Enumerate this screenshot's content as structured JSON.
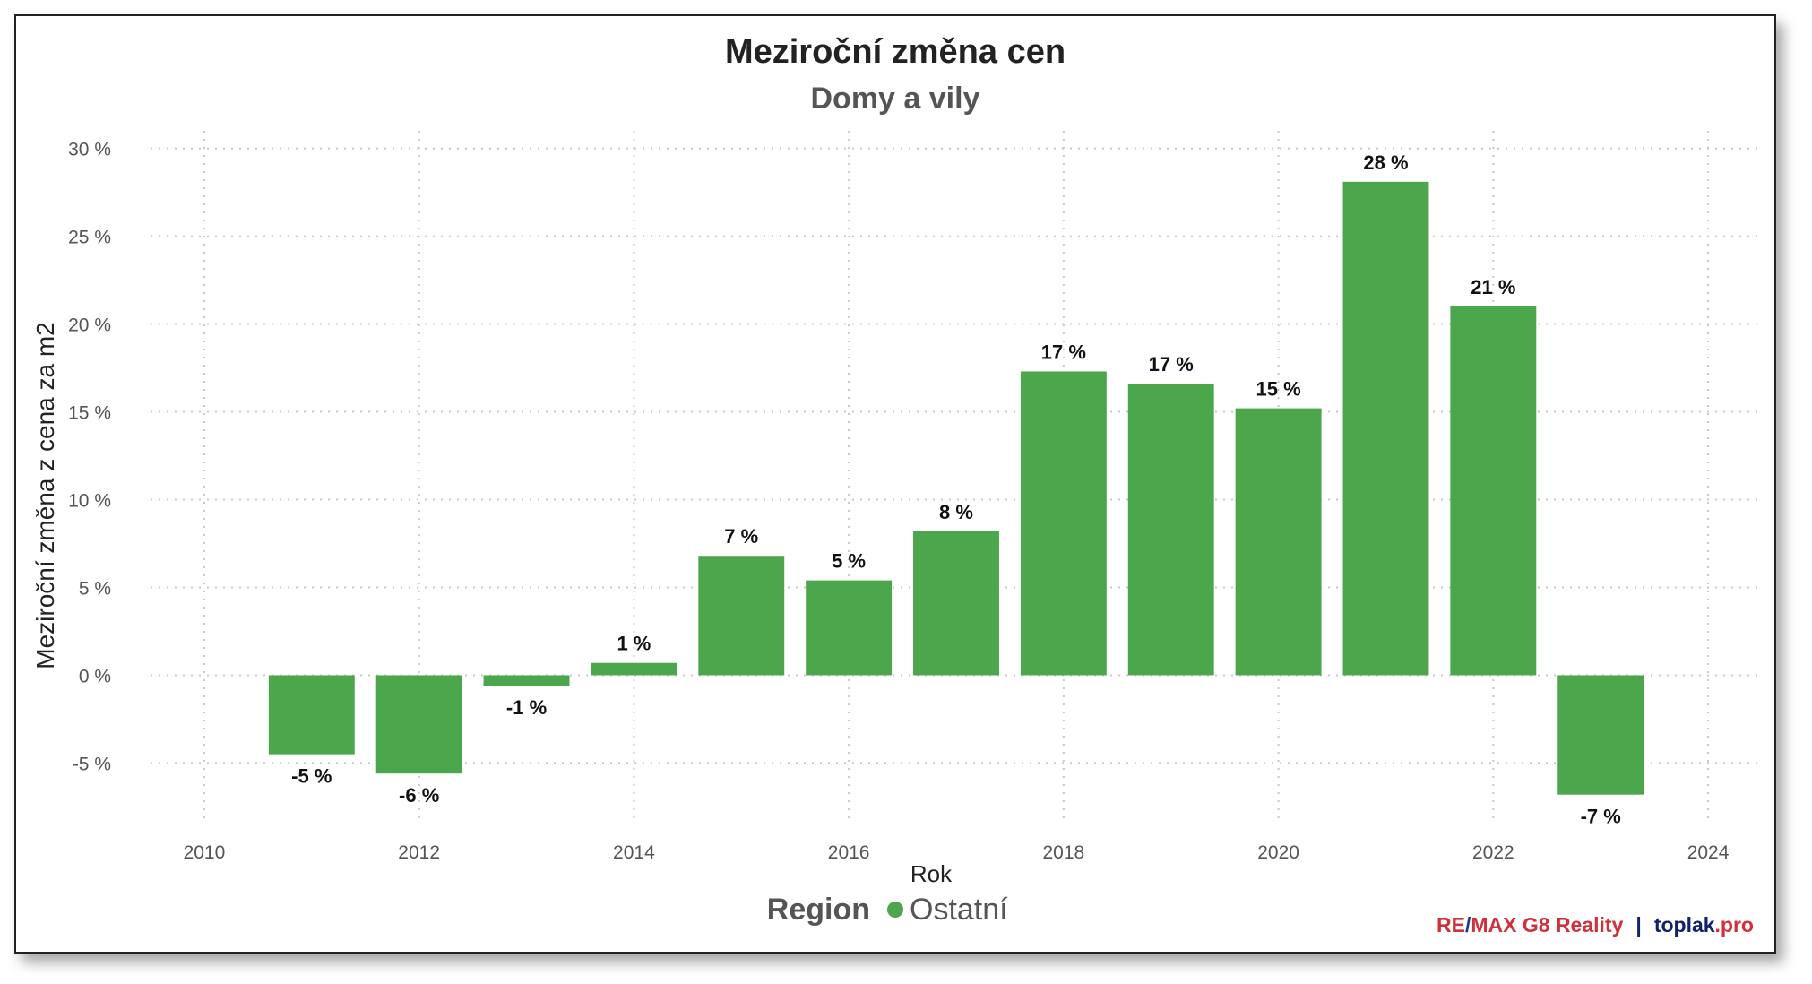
{
  "chart_data": {
    "type": "bar",
    "title": "Meziroční změna cen",
    "subtitle": "Domy a vily",
    "xlabel": "Rok",
    "ylabel": "Meziroční změna z cena za m2",
    "xlim": [
      2009.5,
      2024.5
    ],
    "ylim": [
      -8.5,
      31
    ],
    "x_ticks": [
      {
        "value": 2010,
        "label": "2010"
      },
      {
        "value": 2012,
        "label": "2012"
      },
      {
        "value": 2014,
        "label": "2014"
      },
      {
        "value": 2016,
        "label": "2016"
      },
      {
        "value": 2018,
        "label": "2018"
      },
      {
        "value": 2020,
        "label": "2020"
      },
      {
        "value": 2022,
        "label": "2022"
      },
      {
        "value": 2024,
        "label": "2024"
      }
    ],
    "y_ticks": [
      {
        "value": 30,
        "label": "30 %"
      },
      {
        "value": 25,
        "label": "25 %"
      },
      {
        "value": 20,
        "label": "20 %"
      },
      {
        "value": 15,
        "label": "15 %"
      },
      {
        "value": 10,
        "label": "10 %"
      },
      {
        "value": 5,
        "label": "5 %"
      },
      {
        "value": 0,
        "label": "0 %"
      },
      {
        "value": -5,
        "label": "-5 %"
      }
    ],
    "grid": true,
    "bar_color": "#4ca64c",
    "series": [
      {
        "name": "Ostatní",
        "points": [
          {
            "x": 2011,
            "y": -4.5,
            "label": "-5 %"
          },
          {
            "x": 2012,
            "y": -5.6,
            "label": "-6 %"
          },
          {
            "x": 2013,
            "y": -0.6,
            "label": "-1 %"
          },
          {
            "x": 2014,
            "y": 0.7,
            "label": "1 %"
          },
          {
            "x": 2015,
            "y": 6.8,
            "label": "7 %"
          },
          {
            "x": 2016,
            "y": 5.4,
            "label": "5 %"
          },
          {
            "x": 2017,
            "y": 8.2,
            "label": "8 %"
          },
          {
            "x": 2018,
            "y": 17.3,
            "label": "17 %"
          },
          {
            "x": 2019,
            "y": 16.6,
            "label": "17 %"
          },
          {
            "x": 2020,
            "y": 15.2,
            "label": "15 %"
          },
          {
            "x": 2021,
            "y": 28.1,
            "label": "28 %"
          },
          {
            "x": 2022,
            "y": 21.0,
            "label": "21 %"
          },
          {
            "x": 2023,
            "y": -6.8,
            "label": "-7 %"
          }
        ]
      }
    ],
    "legend": {
      "title": "Region",
      "position": "bottom-center"
    }
  },
  "branding": {
    "part1": "RE",
    "sep": "/",
    "part2": "MAX G8 Reality",
    "divider": "|",
    "part3": "toplak",
    "part4": ".pro",
    "colors": {
      "red": "#d0303c",
      "blue": "#1f3a8a",
      "navy": "#13206b"
    }
  }
}
